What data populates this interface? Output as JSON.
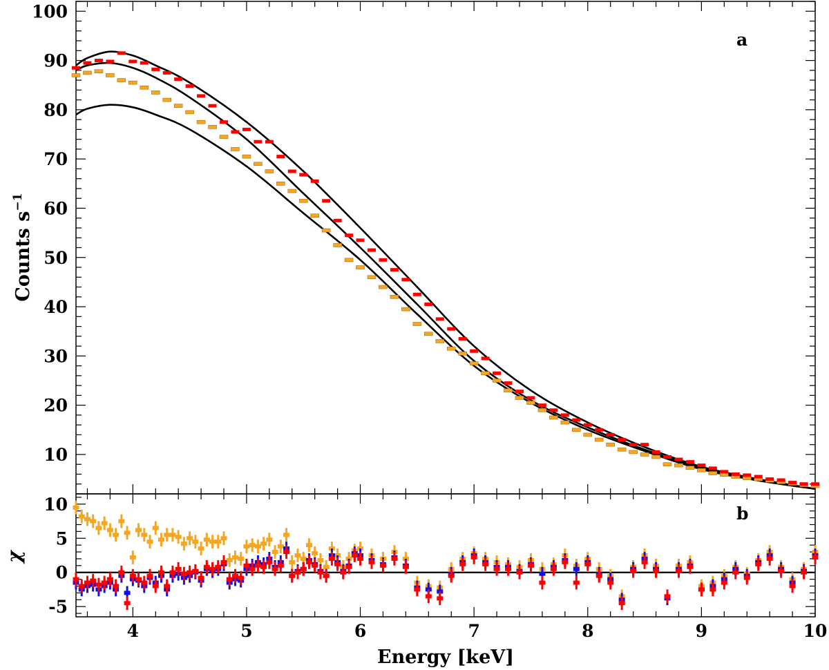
{
  "chart_data": [
    {
      "panel": "a",
      "type": "scatter",
      "panel_label": "a",
      "xlabel": "Energy [keV]",
      "ylabel": "Counts s",
      "ylabel_sup": "−1",
      "xlim": [
        3.5,
        10
      ],
      "ylim": [
        2,
        102
      ],
      "xticks": [
        "4",
        "5",
        "6",
        "7",
        "8",
        "9",
        "10"
      ],
      "yticks": [
        "10",
        "20",
        "30",
        "40",
        "50",
        "60",
        "70",
        "80",
        "90",
        "100"
      ],
      "models": [
        {
          "name": "model-1",
          "color": "#000000",
          "x": [
            3.5,
            3.6,
            3.8,
            4.0,
            4.2,
            4.5,
            5.0,
            5.5,
            6.0,
            6.5,
            7.0,
            7.5,
            8.0,
            8.5,
            9.0,
            9.5,
            10.0
          ],
          "y": [
            89,
            90.5,
            91.8,
            91,
            89,
            85.5,
            77.5,
            67.5,
            56,
            44,
            32,
            23,
            16.5,
            11.5,
            7.5,
            5,
            3
          ]
        },
        {
          "name": "model-2",
          "color": "#000000",
          "x": [
            3.5,
            3.6,
            3.8,
            4.0,
            4.2,
            4.5,
            5.0,
            5.5,
            6.0,
            6.5,
            7.0,
            7.5,
            8.0,
            8.5,
            9.0,
            9.5,
            10.0
          ],
          "y": [
            88,
            89,
            89.5,
            88.5,
            86.5,
            82.5,
            74,
            63,
            52,
            40.5,
            29,
            21,
            15.5,
            11,
            7.2,
            4.8,
            3
          ]
        },
        {
          "name": "model-3",
          "color": "#000000",
          "x": [
            3.5,
            3.6,
            3.8,
            4.0,
            4.2,
            4.5,
            5.0,
            5.5,
            6.0,
            6.5,
            7.0,
            7.5,
            8.0,
            8.5,
            9.0,
            9.5,
            10.0
          ],
          "y": [
            79,
            80.2,
            81,
            80.5,
            79,
            76,
            68.5,
            59,
            49.5,
            38.5,
            28,
            20.5,
            15,
            10.7,
            7,
            4.7,
            3
          ]
        }
      ],
      "series": [
        {
          "name": "red",
          "color": "#ff0000",
          "x": [
            3.5,
            3.6,
            3.7,
            3.8,
            3.9,
            4.0,
            4.1,
            4.2,
            4.3,
            4.4,
            4.5,
            4.6,
            4.7,
            4.8,
            4.9,
            5.0,
            5.1,
            5.2,
            5.3,
            5.4,
            5.5,
            5.6,
            5.7,
            5.8,
            5.9,
            6.0,
            6.1,
            6.2,
            6.3,
            6.4,
            6.5,
            6.6,
            6.7,
            6.8,
            6.9,
            7.0,
            7.1,
            7.2,
            7.3,
            7.4,
            7.5,
            7.6,
            7.7,
            7.8,
            7.9,
            8.0,
            8.1,
            8.2,
            8.3,
            8.4,
            8.5,
            8.6,
            8.7,
            8.8,
            8.9,
            9.0,
            9.1,
            9.2,
            9.3,
            9.4,
            9.5,
            9.6,
            9.7,
            9.8,
            9.9,
            10.0
          ],
          "y": [
            88.5,
            89.5,
            90,
            89.8,
            91.5,
            89.8,
            89.5,
            88.2,
            87.5,
            86.2,
            84.8,
            82.8,
            80.8,
            77.5,
            75.5,
            76,
            73.5,
            73.5,
            70.5,
            67.5,
            66.8,
            65.5,
            61.5,
            57.5,
            54.5,
            53.5,
            51.5,
            49.5,
            47.5,
            45.5,
            42.5,
            40.5,
            37.5,
            35.5,
            33.5,
            31,
            29.5,
            26.5,
            24.5,
            22.8,
            21.5,
            20,
            19,
            18,
            17,
            16,
            15,
            14,
            13,
            12,
            12,
            10.5,
            9.5,
            9,
            8.5,
            7.8,
            7.2,
            6.5,
            6,
            5.8,
            5.5,
            5,
            4.8,
            4.3,
            4,
            4
          ]
        },
        {
          "name": "orange",
          "color": "#f5a623",
          "x": [
            3.5,
            3.6,
            3.7,
            3.8,
            3.9,
            4.0,
            4.1,
            4.2,
            4.3,
            4.4,
            4.5,
            4.6,
            4.7,
            4.8,
            4.9,
            5.0,
            5.1,
            5.2,
            5.3,
            5.4,
            5.5,
            5.6,
            5.7,
            5.8,
            5.9,
            6.0,
            6.1,
            6.2,
            6.3,
            6.4,
            6.5,
            6.6,
            6.7,
            6.8,
            6.9,
            7.0,
            7.1,
            7.2,
            7.3,
            7.4,
            7.5,
            7.6,
            7.7,
            7.8,
            7.9,
            8.0,
            8.1,
            8.2,
            8.3,
            8.4,
            8.5,
            8.6,
            8.7,
            8.8,
            8.9,
            9.0,
            9.1,
            9.2,
            9.3,
            9.4,
            9.5,
            9.6,
            9.7,
            9.8,
            9.9,
            10.0
          ],
          "y": [
            87,
            87.5,
            87.8,
            87,
            86,
            85.5,
            84.5,
            83.5,
            82,
            80.8,
            79.5,
            77.5,
            76.5,
            74.5,
            72,
            70.5,
            69,
            67.5,
            65,
            63.5,
            61.5,
            58.5,
            55.5,
            52.5,
            49.5,
            48,
            46,
            44,
            42,
            39.5,
            36.5,
            34.5,
            33,
            31.5,
            30.5,
            28.5,
            26.5,
            25,
            23,
            21.5,
            20.5,
            19,
            17.5,
            16.5,
            15,
            14,
            13,
            12,
            11,
            10.5,
            10,
            9.5,
            8,
            7.8,
            7.3,
            6.8,
            6.2,
            5.9,
            5.5,
            5.2,
            5,
            4.7,
            4.4,
            4.1,
            3.8,
            3.6
          ]
        }
      ]
    },
    {
      "panel": "b",
      "type": "scatter",
      "panel_label": "b",
      "ylabel": "χ",
      "xlim": [
        3.5,
        10
      ],
      "ylim": [
        -6.5,
        11.5
      ],
      "xticks": [
        "4",
        "5",
        "6",
        "7",
        "8",
        "9",
        "10"
      ],
      "yticks": [
        "-5",
        "0",
        "5",
        "10"
      ],
      "zero_line": 0,
      "series": [
        {
          "name": "orange",
          "color": "#f5a623",
          "x": [
            3.5,
            3.55,
            3.6,
            3.65,
            3.7,
            3.75,
            3.8,
            3.85,
            3.9,
            3.95,
            4.0,
            4.05,
            4.1,
            4.15,
            4.2,
            4.25,
            4.3,
            4.35,
            4.4,
            4.45,
            4.5,
            4.55,
            4.6,
            4.65,
            4.7,
            4.75,
            4.8,
            4.85,
            4.9,
            4.95,
            5.0,
            5.05,
            5.1,
            5.15,
            5.2,
            5.25,
            5.3,
            5.35,
            5.4,
            5.45,
            5.5,
            5.55,
            5.6,
            5.65,
            5.7,
            5.75,
            5.8,
            5.85,
            5.9,
            5.95,
            6.0,
            6.1,
            6.2,
            6.3,
            6.4,
            6.5,
            6.6,
            6.7,
            6.8,
            6.9,
            7.0,
            7.1,
            7.2,
            7.3,
            7.4,
            7.5,
            7.6,
            7.7,
            7.8,
            7.9,
            8.0,
            8.1,
            8.2,
            8.3,
            8.4,
            8.5,
            8.6,
            8.7,
            8.8,
            8.9,
            9.0,
            9.1,
            9.2,
            9.3,
            9.4,
            9.5,
            9.6,
            9.7,
            9.8,
            9.9,
            10.0
          ],
          "y": [
            9.5,
            8.2,
            7.8,
            7.5,
            6.5,
            7.2,
            6.2,
            5.5,
            7.5,
            5.8,
            2.2,
            6.2,
            5.5,
            4.5,
            6.5,
            4.8,
            5.5,
            5.5,
            5.2,
            4.2,
            5.0,
            4.5,
            3.5,
            4.8,
            4.5,
            4.5,
            5.0,
            1.8,
            2.2,
            2.0,
            3.8,
            4.0,
            3.8,
            4.2,
            4.8,
            3.0,
            3.8,
            5.5,
            1.5,
            2.5,
            2.0,
            4.0,
            2.8,
            1.8,
            0.8,
            3.5,
            2.5,
            0.8,
            2.0,
            3.2,
            3.5,
            2.5,
            2.0,
            3.0,
            2.0,
            -1.5,
            -2.0,
            -2.2,
            0.5,
            2.0,
            2.8,
            2.0,
            1.5,
            1.2,
            0.8,
            1.8,
            0.5,
            1.2,
            2.5,
            1.0,
            2.0,
            0.5,
            -0.5,
            -3.5,
            0.8,
            2.5,
            1.0,
            -3.5,
            1.0,
            1.5,
            -2.0,
            -1.5,
            -0.5,
            0.8,
            -0.2,
            1.8,
            3.0,
            0.8,
            -1.0,
            0.5,
            3.0
          ]
        },
        {
          "name": "blue",
          "color": "#1010e0",
          "x": [
            3.5,
            3.55,
            3.6,
            3.65,
            3.7,
            3.75,
            3.8,
            3.85,
            3.9,
            3.95,
            4.0,
            4.05,
            4.1,
            4.15,
            4.2,
            4.25,
            4.3,
            4.35,
            4.4,
            4.45,
            4.5,
            4.55,
            4.6,
            4.65,
            4.7,
            4.75,
            4.8,
            4.85,
            4.9,
            4.95,
            5.0,
            5.05,
            5.1,
            5.15,
            5.2,
            5.25,
            5.3,
            5.35,
            5.4,
            5.45,
            5.5,
            5.55,
            5.6,
            5.65,
            5.7,
            5.75,
            5.8,
            5.85,
            5.9,
            5.95,
            6.0,
            6.1,
            6.2,
            6.3,
            6.4,
            6.5,
            6.6,
            6.7,
            6.8,
            6.9,
            7.0,
            7.1,
            7.2,
            7.3,
            7.4,
            7.5,
            7.6,
            7.7,
            7.8,
            7.9,
            8.0,
            8.1,
            8.2,
            8.3,
            8.4,
            8.5,
            8.6,
            8.7,
            8.8,
            8.9,
            9.0,
            9.1,
            9.2,
            9.3,
            9.4,
            9.5,
            9.6,
            9.7,
            9.8,
            9.9,
            10.0
          ],
          "y": [
            -1.5,
            -2.5,
            -2.0,
            -1.8,
            -2.5,
            -2.0,
            -1.5,
            -2.5,
            -0.5,
            -3.0,
            -1.0,
            -1.2,
            -2.0,
            -0.8,
            -1.5,
            -0.5,
            -2.5,
            -0.5,
            -0.2,
            -0.8,
            -0.5,
            0.0,
            -1.2,
            0.5,
            0.2,
            0.5,
            1.2,
            -1.5,
            -1.0,
            -1.2,
            0.5,
            1.0,
            1.5,
            1.2,
            2.0,
            0.8,
            1.5,
            3.5,
            -0.5,
            0.2,
            0.5,
            1.8,
            1.2,
            0.2,
            -0.5,
            2.5,
            1.5,
            0.2,
            1.0,
            2.8,
            2.5,
            1.8,
            1.2,
            2.2,
            1.0,
            -2.2,
            -2.5,
            -2.8,
            -0.2,
            1.5,
            2.5,
            1.5,
            0.8,
            0.8,
            0.2,
            1.2,
            -0.2,
            0.8,
            1.8,
            0.5,
            1.5,
            -0.2,
            -1.0,
            -4.0,
            0.5,
            2.0,
            0.5,
            -3.8,
            0.5,
            1.0,
            -2.5,
            -2.0,
            -1.0,
            0.5,
            -0.5,
            1.5,
            2.5,
            0.5,
            -1.5,
            0.2,
            2.5
          ]
        },
        {
          "name": "red",
          "color": "#ff0000",
          "x": [
            3.5,
            3.55,
            3.6,
            3.65,
            3.7,
            3.75,
            3.8,
            3.85,
            3.9,
            3.95,
            4.0,
            4.05,
            4.1,
            4.15,
            4.2,
            4.25,
            4.3,
            4.35,
            4.4,
            4.45,
            4.5,
            4.55,
            4.6,
            4.65,
            4.7,
            4.75,
            4.8,
            4.85,
            4.9,
            4.95,
            5.0,
            5.05,
            5.1,
            5.15,
            5.2,
            5.25,
            5.3,
            5.35,
            5.4,
            5.45,
            5.5,
            5.55,
            5.6,
            5.65,
            5.7,
            5.75,
            5.8,
            5.85,
            5.9,
            5.95,
            6.0,
            6.1,
            6.2,
            6.3,
            6.4,
            6.5,
            6.6,
            6.7,
            6.8,
            6.9,
            7.0,
            7.1,
            7.2,
            7.3,
            7.4,
            7.5,
            7.6,
            7.7,
            7.8,
            7.9,
            8.0,
            8.1,
            8.2,
            8.3,
            8.4,
            8.5,
            8.6,
            8.7,
            8.8,
            8.9,
            9.0,
            9.1,
            9.2,
            9.3,
            9.4,
            9.5,
            9.6,
            9.7,
            9.8,
            9.9,
            10.0
          ],
          "y": [
            -1.0,
            -2.0,
            -1.5,
            -1.2,
            -1.8,
            -1.5,
            -1.0,
            -2.0,
            0.0,
            -4.5,
            -0.5,
            -1.0,
            -1.5,
            -0.5,
            -2.0,
            0.0,
            -2.0,
            0.0,
            0.5,
            -0.2,
            0.0,
            0.2,
            -0.8,
            0.8,
            0.5,
            0.8,
            1.5,
            -1.0,
            -0.5,
            -0.8,
            1.0,
            0.5,
            1.0,
            0.8,
            1.5,
            0.5,
            1.0,
            3.0,
            -0.5,
            0.0,
            0.5,
            1.5,
            1.0,
            0.0,
            -0.5,
            2.0,
            1.2,
            0.0,
            0.8,
            2.5,
            2.0,
            1.5,
            1.0,
            2.0,
            0.8,
            -2.5,
            -3.5,
            -3.8,
            -0.5,
            1.2,
            2.2,
            1.2,
            0.5,
            0.5,
            0.0,
            1.0,
            -1.5,
            0.5,
            1.5,
            -1.5,
            1.2,
            -0.5,
            -1.5,
            -4.5,
            0.2,
            1.5,
            0.2,
            -3.5,
            0.2,
            0.8,
            -2.5,
            -2.5,
            -1.5,
            0.0,
            -0.8,
            1.2,
            2.0,
            0.2,
            -2.0,
            0.0,
            2.2
          ]
        }
      ]
    }
  ]
}
